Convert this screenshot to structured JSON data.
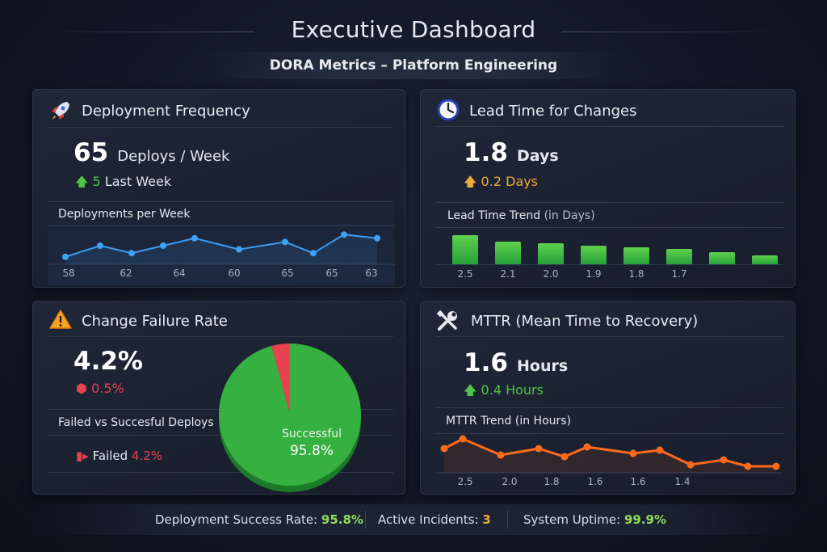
{
  "header": {
    "title": "Executive Dashboard",
    "subtitle": "DORA Metrics – Platform Engineering"
  },
  "colors": {
    "green": "#4fc54a",
    "amber": "#f2a93b",
    "red": "#e8414f",
    "blue": "#3b9cf0",
    "orange": "#ff6a1a"
  },
  "deployment_frequency": {
    "title": "Deployment Frequency",
    "icon": "rocket-icon",
    "value": "65",
    "unit": "Deploys / Week",
    "delta_value": "5",
    "delta_label": "Last Week",
    "delta_direction": "up",
    "chart": {
      "type": "line",
      "title": "Deployments per Week",
      "values": [
        58,
        61,
        59,
        61,
        63,
        60,
        62,
        59,
        64,
        63
      ],
      "tick_labels": [
        "58",
        "62",
        "64",
        "60",
        "65",
        "65",
        "63"
      ]
    }
  },
  "lead_time": {
    "title": "Lead Time for Changes",
    "icon": "clock-icon",
    "value": "1.8",
    "unit": "Days",
    "delta": "0.2 Days",
    "delta_direction": "up",
    "chart": {
      "type": "bar",
      "title": "Lead Time Trend",
      "title_suffix": "(in Days)",
      "values": [
        2.5,
        2.1,
        2.0,
        1.9,
        1.8,
        1.7,
        1.5,
        1.3
      ],
      "tick_labels": [
        "2.5",
        "2.1",
        "2.0",
        "1.9",
        "1.8",
        "1.7",
        "",
        ""
      ]
    }
  },
  "change_failure": {
    "title": "Change Failure Rate",
    "icon": "warning-icon",
    "value": "4.2%",
    "delta": "0.5%",
    "breakdown_title": "Failed vs Succesful Deploys",
    "failed_label": "Failed",
    "failed_value": "4.2%",
    "chart": {
      "type": "pie",
      "slices": [
        {
          "name": "Failed",
          "value": 4.2
        },
        {
          "name": "Successful",
          "value": 95.8
        }
      ],
      "success_label": "Successful",
      "success_value": "95.8%"
    }
  },
  "mttr": {
    "title": "MTTR (Mean Time to Recovery)",
    "icon": "tools-icon",
    "value": "1.6",
    "unit": "Hours",
    "delta": "0.4 Hours",
    "delta_direction": "up",
    "chart": {
      "type": "line",
      "title": "MTTR Trend (in Hours)",
      "values": [
        2.3,
        2.6,
        2.1,
        2.3,
        2.05,
        2.35,
        2.15,
        2.25,
        1.8,
        1.95,
        1.75,
        1.75
      ],
      "tick_labels": [
        "2.5",
        "2.0",
        "1.8",
        "1.6",
        "1.6",
        "1.4"
      ]
    }
  },
  "footer": {
    "success_label": "Deployment Success Rate:",
    "success_value": "95.8%",
    "incidents_label": "Active Incidents:",
    "incidents_value": "3",
    "uptime_label": "System Uptime:",
    "uptime_value": "99.9%"
  }
}
